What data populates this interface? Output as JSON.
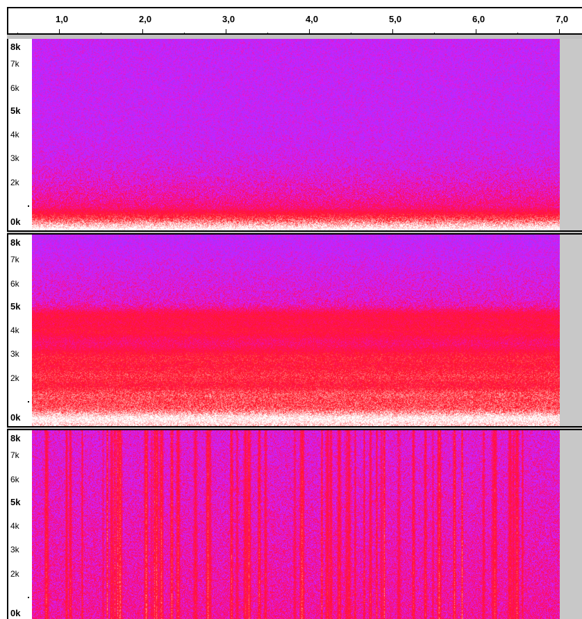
{
  "ruler": {
    "labels": [
      "1,0",
      "2,0",
      "3,0",
      "4,0",
      "5,0",
      "6,0",
      "7,0"
    ]
  },
  "tracks": [
    {
      "axis_labels": [
        "8k",
        "7k",
        "6k",
        "5k",
        "4k",
        "3k",
        "2k",
        "0k"
      ],
      "style": "noise-low"
    },
    {
      "axis_labels": [
        "8k",
        "7k",
        "6k",
        "5k",
        "4k",
        "3k",
        "2k",
        "0k"
      ],
      "style": "noise-bands"
    },
    {
      "axis_labels": [
        "8k",
        "7k",
        "6k",
        "5k",
        "4k",
        "3k",
        "2k",
        "0k"
      ],
      "style": "transients"
    }
  ],
  "colors": {
    "magenta": "#d020d8",
    "violet": "#9040f0",
    "red": "#ff1030",
    "white": "#ffffff",
    "panel_gray": "#c8c8c8"
  }
}
